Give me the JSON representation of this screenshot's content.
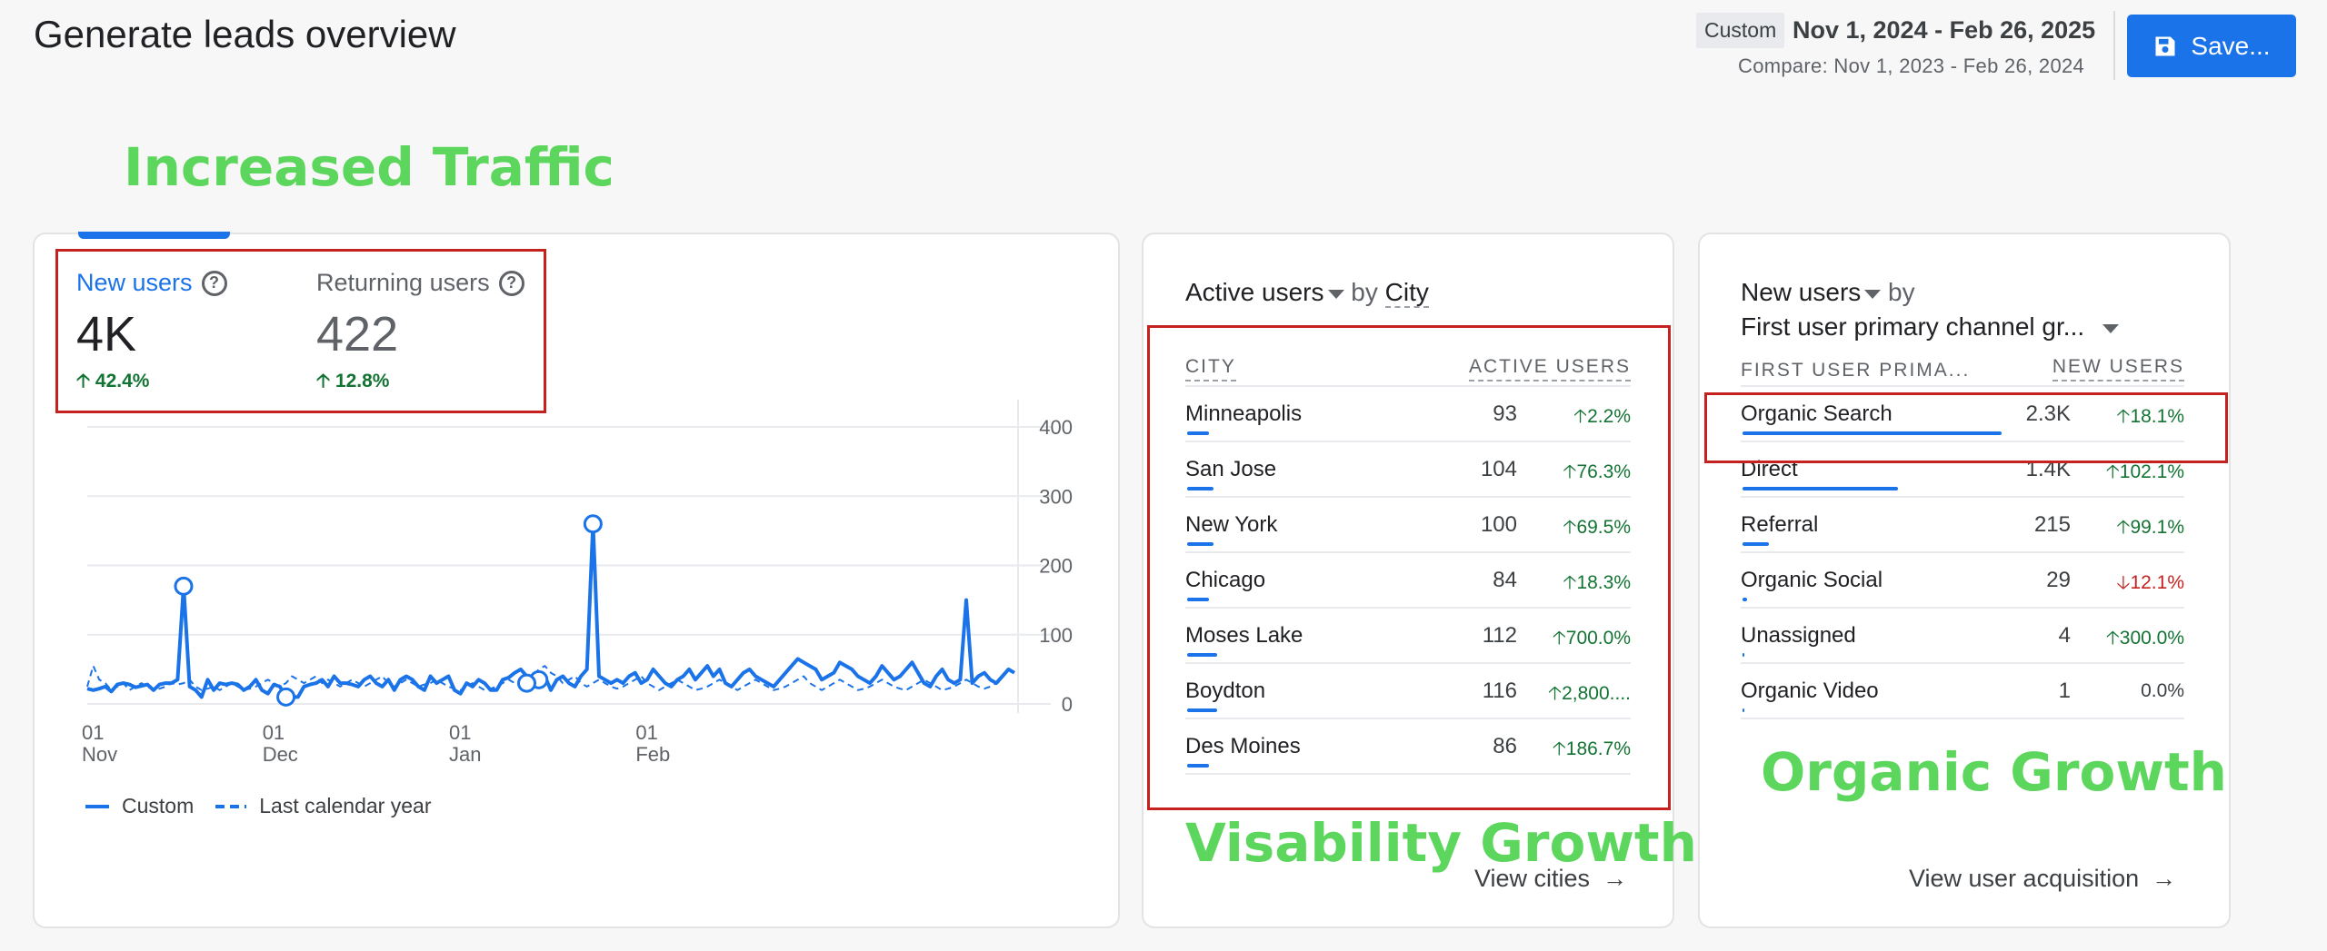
{
  "header": {
    "title": "Generate leads overview",
    "date_chip": "Custom",
    "date_range": "Nov 1, 2024 - Feb 26, 2025",
    "compare_range": "Compare: Nov 1, 2023 - Feb 26, 2024",
    "save_label": "Save..."
  },
  "annotations": {
    "traffic": "Increased Traffic",
    "visibility": "Visability Growth",
    "organic": "Organic Growth"
  },
  "colors": {
    "accent": "#1a73e8",
    "annotation": "#5cd65c",
    "highlight_box": "#c5221f",
    "positive": "#137333",
    "negative": "#c5221f"
  },
  "users_card": {
    "new_users": {
      "label": "New users",
      "value": "4K",
      "delta": "42.4%"
    },
    "returning_users": {
      "label": "Returning users",
      "value": "422",
      "delta": "12.8%"
    },
    "legend": {
      "current": "Custom",
      "previous": "Last calendar year"
    }
  },
  "chart_data": {
    "type": "line",
    "ylim": [
      0,
      400
    ],
    "y_ticks": [
      "400",
      "300",
      "200",
      "100",
      "0"
    ],
    "x_ticks": [
      {
        "day": "01",
        "month": "Nov"
      },
      {
        "day": "01",
        "month": "Dec"
      },
      {
        "day": "01",
        "month": "Jan"
      },
      {
        "day": "01",
        "month": "Feb"
      }
    ],
    "series": [
      {
        "name": "Custom",
        "style": "solid",
        "values": [
          22,
          20,
          22,
          25,
          18,
          28,
          30,
          28,
          24,
          26,
          28,
          20,
          28,
          30,
          30,
          35,
          170,
          25,
          20,
          10,
          35,
          20,
          30,
          28,
          30,
          28,
          20,
          25,
          35,
          20,
          15,
          28,
          25,
          10,
          10,
          10,
          25,
          28,
          30,
          35,
          25,
          40,
          30,
          30,
          28,
          25,
          35,
          40,
          30,
          25,
          35,
          20,
          35,
          40,
          35,
          25,
          20,
          40,
          30,
          35,
          40,
          20,
          15,
          30,
          25,
          35,
          30,
          20,
          20,
          35,
          38,
          45,
          50,
          40,
          30,
          35,
          40,
          20,
          35,
          40,
          30,
          25,
          40,
          50,
          260,
          40,
          35,
          30,
          35,
          30,
          40,
          45,
          30,
          35,
          50,
          40,
          30,
          25,
          35,
          40,
          50,
          35,
          45,
          55,
          40,
          50,
          30,
          25,
          35,
          45,
          50,
          40,
          35,
          30,
          25,
          35,
          45,
          55,
          65,
          60,
          55,
          50,
          35,
          40,
          45,
          60,
          55,
          50,
          40,
          35,
          30,
          40,
          55,
          45,
          35,
          40,
          50,
          60,
          45,
          30,
          25,
          40,
          50,
          35,
          30,
          35,
          150,
          30,
          40,
          45,
          35,
          30,
          40,
          50,
          45
        ]
      },
      {
        "name": "Last calendar year",
        "style": "dashed",
        "values": [
          25,
          55,
          35,
          30,
          20,
          25,
          30,
          20,
          25,
          30,
          25,
          20,
          22,
          25,
          30,
          28,
          30,
          35,
          25,
          20,
          22,
          25,
          20,
          25,
          30,
          25,
          20,
          22,
          25,
          30,
          35,
          30,
          25,
          30,
          40,
          35,
          30,
          35,
          40,
          30,
          35,
          30,
          25,
          30,
          35,
          30,
          25,
          30,
          35,
          40,
          30,
          25,
          30,
          35,
          30,
          25,
          28,
          30,
          35,
          30,
          25,
          22,
          20,
          25,
          30,
          25,
          20,
          22,
          25,
          30,
          35,
          30,
          25,
          30,
          40,
          50,
          55,
          45,
          40,
          30,
          35,
          40,
          30,
          25,
          30,
          35,
          30,
          25,
          22,
          25,
          30,
          35,
          40,
          30,
          25,
          20,
          25,
          30,
          35,
          30,
          25,
          20,
          22,
          25,
          30,
          35,
          30,
          25,
          20,
          25,
          30,
          35,
          30,
          25,
          20,
          22,
          25,
          30,
          35,
          40,
          30,
          25,
          20,
          25,
          30,
          35,
          30,
          25,
          20,
          22,
          25,
          30,
          35,
          30,
          25,
          22,
          20,
          25,
          30,
          35,
          30,
          25,
          20,
          22,
          25,
          30,
          35,
          30,
          25,
          22,
          25,
          30,
          35
        ]
      }
    ],
    "markers": [
      {
        "series": 0,
        "index": 16
      },
      {
        "series": 0,
        "index": 33
      },
      {
        "series": 0,
        "index": 75
      },
      {
        "series": 0,
        "index": 84
      },
      {
        "series": 1,
        "index": 73
      }
    ]
  },
  "city_card": {
    "metric": "Active users",
    "by": "by",
    "dimension": "City",
    "col_name": "CITY",
    "col_value": "ACTIVE USERS",
    "rows": [
      {
        "name": "Minneapolis",
        "value": "93",
        "delta": "2.2%",
        "trend": "up",
        "share": 0.05
      },
      {
        "name": "San Jose",
        "value": "104",
        "delta": "76.3%",
        "trend": "up",
        "share": 0.06
      },
      {
        "name": "New York",
        "value": "100",
        "delta": "69.5%",
        "trend": "up",
        "share": 0.06
      },
      {
        "name": "Chicago",
        "value": "84",
        "delta": "18.3%",
        "trend": "up",
        "share": 0.05
      },
      {
        "name": "Moses Lake",
        "value": "112",
        "delta": "700.0%",
        "trend": "up",
        "share": 0.07
      },
      {
        "name": "Boydton",
        "value": "116",
        "delta": "2,800....",
        "trend": "up",
        "share": 0.07
      },
      {
        "name": "Des Moines",
        "value": "86",
        "delta": "186.7%",
        "trend": "up",
        "share": 0.05
      }
    ],
    "view_link": "View cities"
  },
  "channel_card": {
    "metric": "New users",
    "by": "by",
    "dimension": "First user primary channel gr...",
    "col_name": "FIRST USER PRIMA...",
    "col_value": "NEW USERS",
    "rows": [
      {
        "name": "Organic Search",
        "value": "2.3K",
        "delta": "18.1%",
        "trend": "up",
        "share": 0.6
      },
      {
        "name": "Direct",
        "value": "1.4K",
        "delta": "102.1%",
        "trend": "up",
        "share": 0.36
      },
      {
        "name": "Referral",
        "value": "215",
        "delta": "99.1%",
        "trend": "up",
        "share": 0.06
      },
      {
        "name": "Organic Social",
        "value": "29",
        "delta": "12.1%",
        "trend": "down",
        "share": 0.01
      },
      {
        "name": "Unassigned",
        "value": "4",
        "delta": "300.0%",
        "trend": "up",
        "share": 0.003
      },
      {
        "name": "Organic Video",
        "value": "1",
        "delta": "0.0%",
        "trend": "flat",
        "share": 0.001
      }
    ],
    "view_link": "View user acquisition"
  }
}
